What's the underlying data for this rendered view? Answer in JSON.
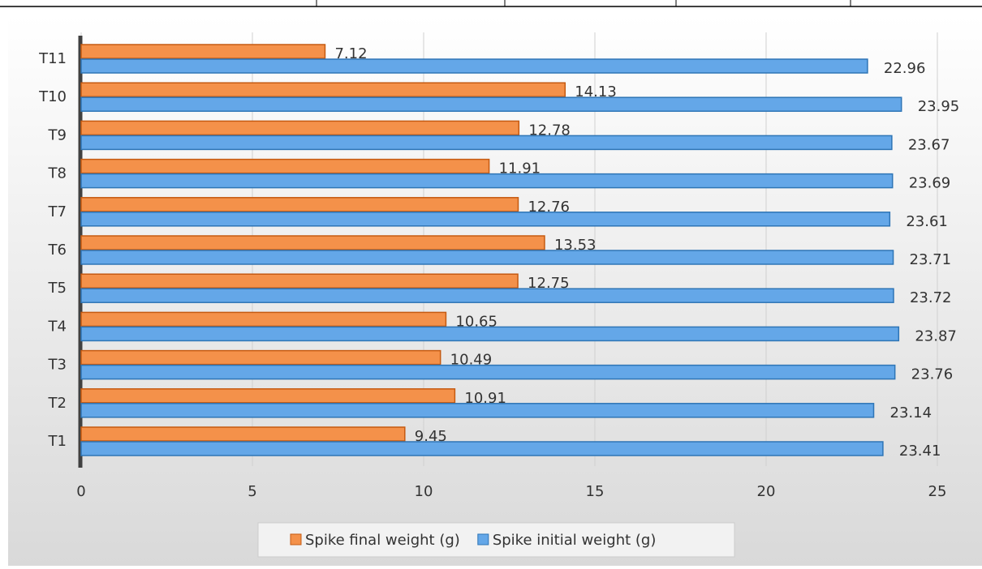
{
  "chart_data": {
    "type": "hbar",
    "categories": [
      "T1",
      "T2",
      "T3",
      "T4",
      "T5",
      "T6",
      "T7",
      "T8",
      "T9",
      "T10",
      "T11"
    ],
    "series": [
      {
        "name": "Spike final weight (g)",
        "color": "#f4914a",
        "values": [
          9.45,
          10.91,
          10.49,
          10.65,
          12.75,
          13.53,
          12.76,
          11.91,
          12.78,
          14.13,
          7.12
        ]
      },
      {
        "name": "Spike initial weight (g)",
        "color": "#64a7e8",
        "values": [
          23.41,
          23.14,
          23.76,
          23.87,
          23.72,
          23.71,
          23.61,
          23.69,
          23.67,
          23.95,
          22.96
        ]
      }
    ],
    "xlim": [
      0,
      25
    ],
    "xticks": [
      0,
      5,
      10,
      15,
      20,
      25
    ],
    "grid": true,
    "legend": "bottom"
  }
}
